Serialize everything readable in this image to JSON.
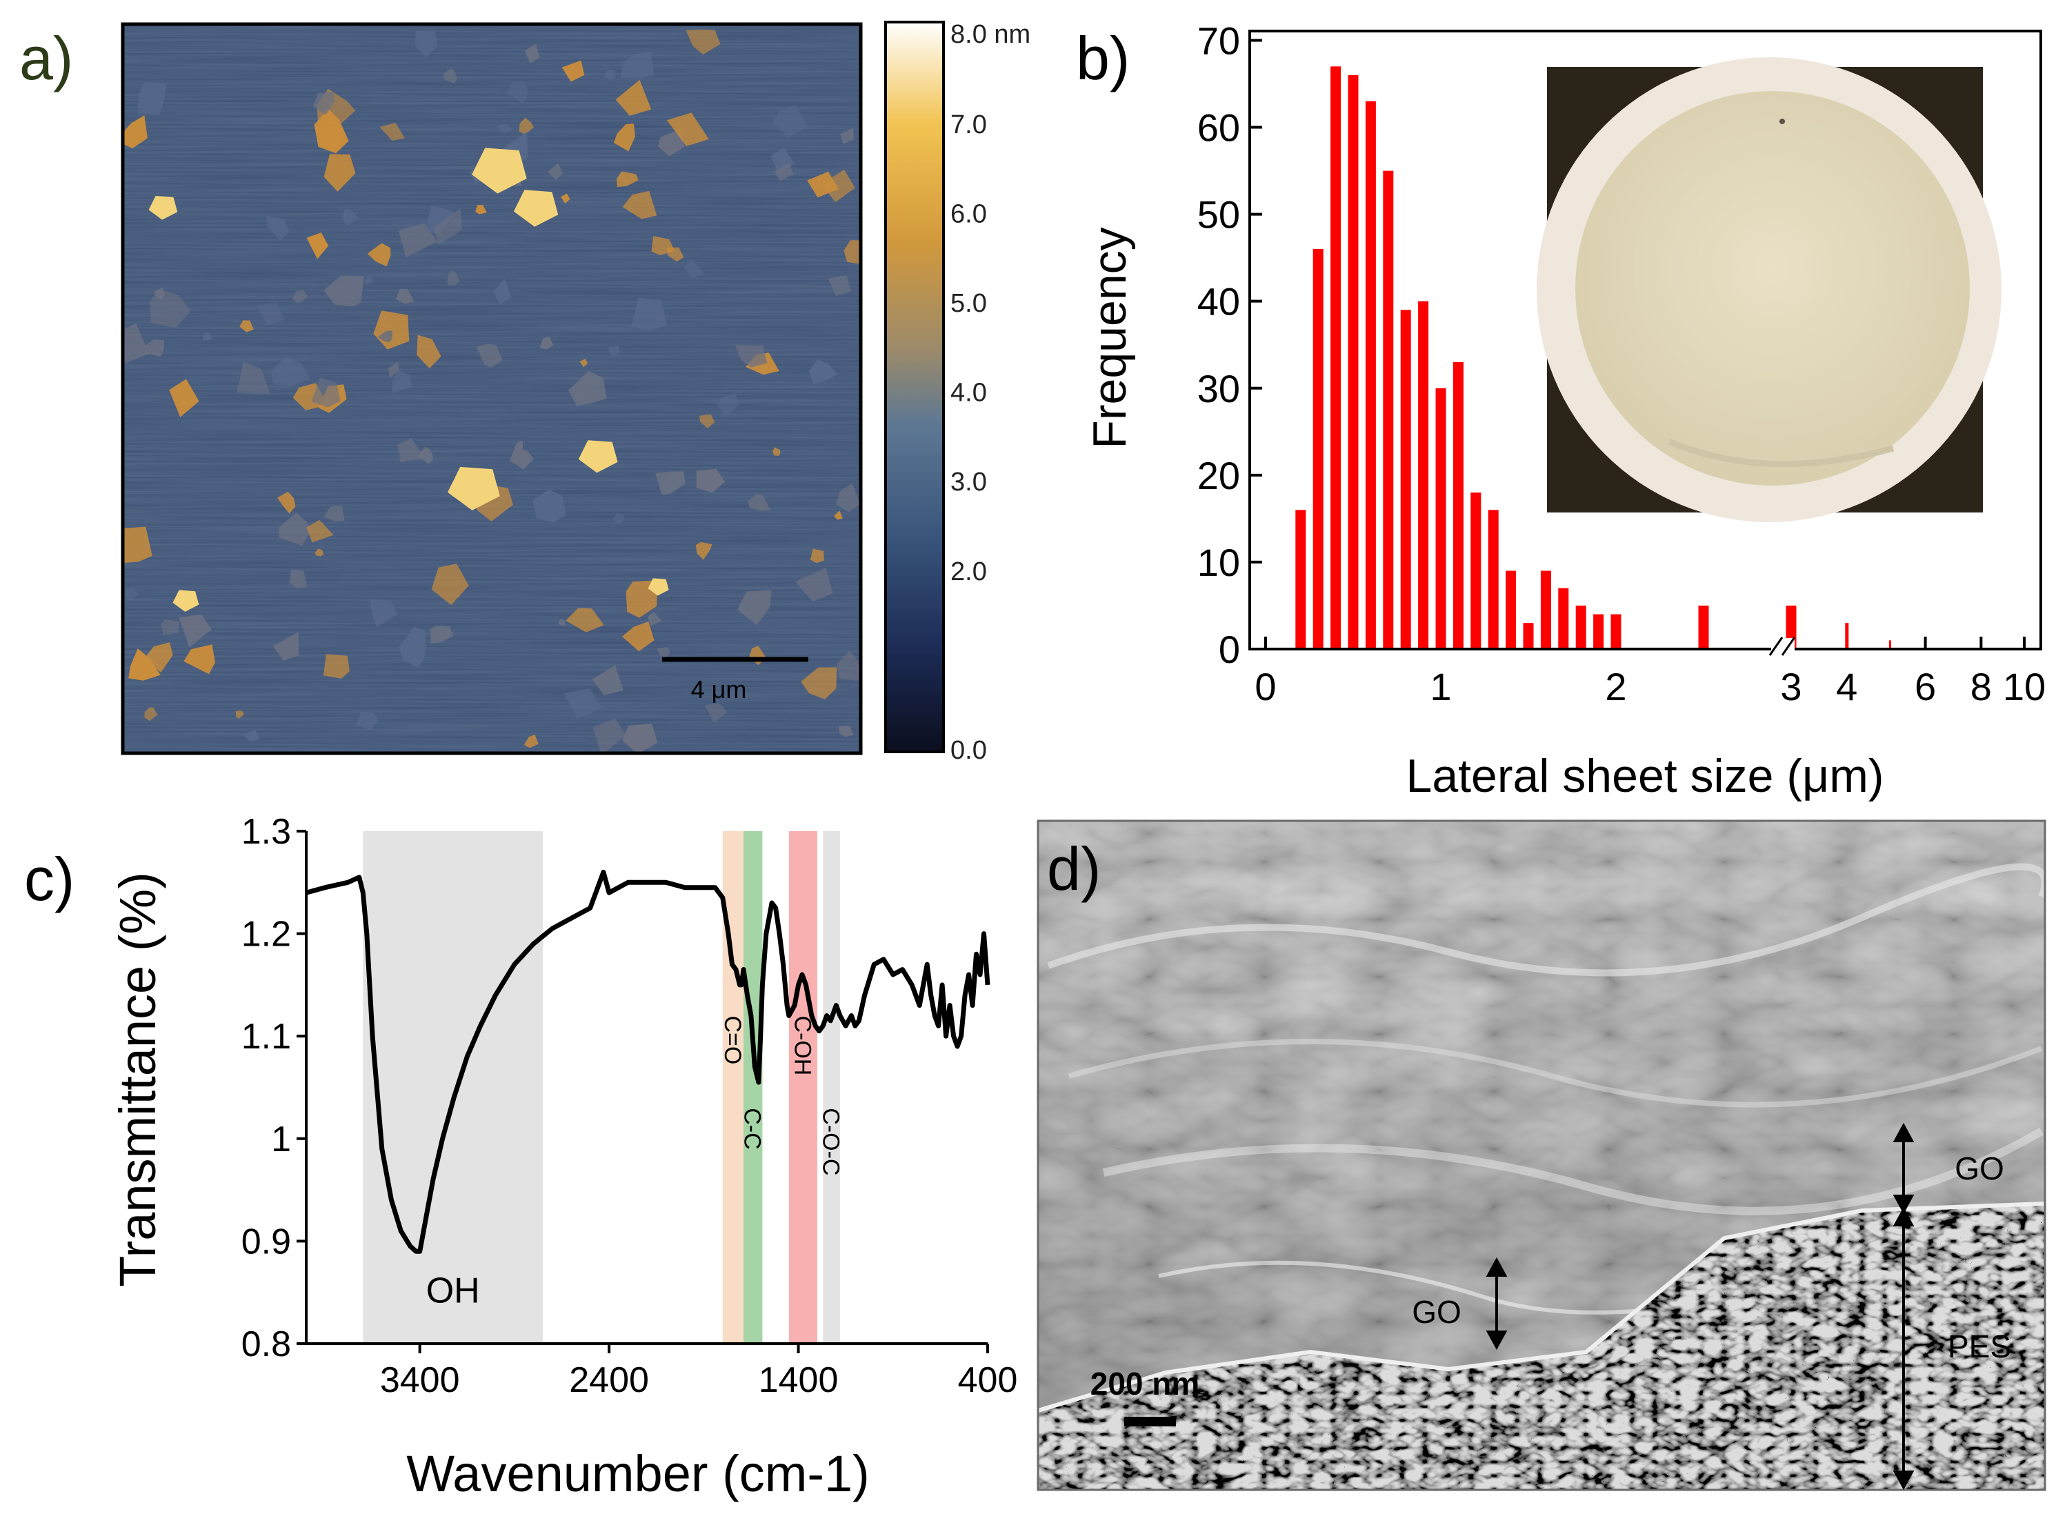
{
  "panel_a": {
    "letter": "a)",
    "scale_bar_label": "4 μm",
    "colorbar": {
      "ticks": [
        "8.0 nm",
        "7.0",
        "6.0",
        "5.0",
        "4.0",
        "3.0",
        "2.0",
        "0.0"
      ],
      "min_value": 0.0,
      "max_value": 8.0,
      "unit": "nm",
      "colors": [
        "#0b0e1e",
        "#1c2b55",
        "#3a567c",
        "#5e7893",
        "#9b8a6a",
        "#d2993c",
        "#f2c352",
        "#ffffff"
      ]
    },
    "image_colors": {
      "background": "#3d5174",
      "flake": "#c98d3b",
      "flake_bright": "#f4d47a"
    }
  },
  "panel_b": {
    "letter": "b)",
    "inset_colors": {
      "frame": "#2b2419",
      "disc_edge": "#efe7dc",
      "membrane": "#e2d9bd"
    }
  },
  "panel_c": {
    "letter": "c)",
    "band_labels": {
      "oh": "OH",
      "co": "C=O",
      "cc": "C-C",
      "coh": "C-OH",
      "coc": "C-O-C"
    },
    "band_colors": {
      "gray": "#e3e3e3",
      "orange": "#f8dcc5",
      "green": "#a5d5a6",
      "red": "#f9b0b0"
    }
  },
  "panel_d": {
    "letter": "d)",
    "labels": {
      "go_right": "GO",
      "go_left": "GO",
      "pes": "PES",
      "scale": "200 nm"
    },
    "sem_colors": {
      "light": "#d7d7d7",
      "mid": "#8c8c8c",
      "dark": "#141414"
    }
  },
  "chart_data": [
    {
      "type": "bar",
      "title": "",
      "xlabel": "Lateral sheet size (μm)",
      "ylabel": "Frequency",
      "ylim": [
        0,
        70
      ],
      "yticks": [
        0,
        10,
        20,
        30,
        40,
        50,
        60,
        70
      ],
      "xlim": [
        0,
        10
      ],
      "xtick_labels": [
        "0",
        "1",
        "2",
        "3",
        "4",
        "6",
        "8",
        "10"
      ],
      "x_axis_break_at": 3,
      "bar_color": "#ff0000",
      "x": [
        0.2,
        0.3,
        0.4,
        0.5,
        0.6,
        0.7,
        0.8,
        0.9,
        1.0,
        1.1,
        1.2,
        1.3,
        1.4,
        1.5,
        1.6,
        1.7,
        1.8,
        1.9,
        2.0,
        2.5,
        3.0,
        4.0,
        5.0
      ],
      "values": [
        16,
        46,
        67,
        66,
        63,
        55,
        39,
        40,
        30,
        33,
        18,
        16,
        9,
        3,
        9,
        7,
        5,
        4,
        4,
        5,
        5,
        3,
        1
      ]
    },
    {
      "type": "line",
      "title": "",
      "xlabel": "Wavenumber (cm-1)",
      "ylabel": "Transmittance (%)",
      "xlim": [
        4000,
        400
      ],
      "ylim": [
        0.8,
        1.3
      ],
      "xticks": [
        3400,
        2400,
        1400,
        400
      ],
      "yticks": [
        "0.8",
        "0.9",
        "1",
        "1.1",
        "1.2",
        "1.3"
      ],
      "line_color": "#000000",
      "shaded_bands": [
        {
          "label": "OH",
          "from": 3700,
          "to": 2750,
          "color": "gray"
        },
        {
          "label": "C=O",
          "from": 1800,
          "to": 1690,
          "color": "orange"
        },
        {
          "label": "C-C",
          "from": 1690,
          "to": 1590,
          "color": "green"
        },
        {
          "label": "C-OH",
          "from": 1450,
          "to": 1300,
          "color": "red"
        },
        {
          "label": "C-O-C",
          "from": 1270,
          "to": 1180,
          "color": "gray"
        }
      ],
      "x": [
        4000,
        3900,
        3780,
        3720,
        3700,
        3680,
        3650,
        3600,
        3550,
        3500,
        3450,
        3420,
        3400,
        3370,
        3330,
        3280,
        3220,
        3150,
        3080,
        3000,
        2900,
        2800,
        2700,
        2600,
        2500,
        2450,
        2430,
        2400,
        2300,
        2200,
        2100,
        2000,
        1900,
        1840,
        1800,
        1770,
        1750,
        1730,
        1710,
        1700,
        1690,
        1670,
        1650,
        1630,
        1610,
        1600,
        1590,
        1570,
        1540,
        1520,
        1500,
        1480,
        1460,
        1450,
        1420,
        1400,
        1380,
        1360,
        1330,
        1310,
        1290,
        1270,
        1250,
        1230,
        1200,
        1180,
        1150,
        1120,
        1100,
        1080,
        1050,
        1000,
        950,
        900,
        850,
        800,
        760,
        720,
        700,
        680,
        660,
        640,
        620,
        600,
        580,
        560,
        540,
        520,
        500,
        480,
        460,
        440,
        420,
        400
      ],
      "y": [
        1.24,
        1.245,
        1.25,
        1.255,
        1.24,
        1.2,
        1.1,
        0.99,
        0.94,
        0.91,
        0.895,
        0.89,
        0.89,
        0.92,
        0.96,
        1.0,
        1.04,
        1.08,
        1.11,
        1.14,
        1.17,
        1.19,
        1.205,
        1.215,
        1.225,
        1.25,
        1.26,
        1.24,
        1.25,
        1.25,
        1.25,
        1.245,
        1.245,
        1.245,
        1.235,
        1.2,
        1.17,
        1.165,
        1.15,
        1.15,
        1.165,
        1.14,
        1.12,
        1.07,
        1.055,
        1.1,
        1.15,
        1.2,
        1.23,
        1.225,
        1.2,
        1.17,
        1.13,
        1.12,
        1.13,
        1.15,
        1.16,
        1.15,
        1.12,
        1.11,
        1.105,
        1.11,
        1.12,
        1.115,
        1.13,
        1.12,
        1.11,
        1.12,
        1.11,
        1.115,
        1.14,
        1.17,
        1.175,
        1.16,
        1.165,
        1.15,
        1.13,
        1.17,
        1.14,
        1.12,
        1.11,
        1.15,
        1.1,
        1.13,
        1.1,
        1.09,
        1.1,
        1.14,
        1.16,
        1.13,
        1.18,
        1.16,
        1.2,
        1.15
      ]
    }
  ]
}
